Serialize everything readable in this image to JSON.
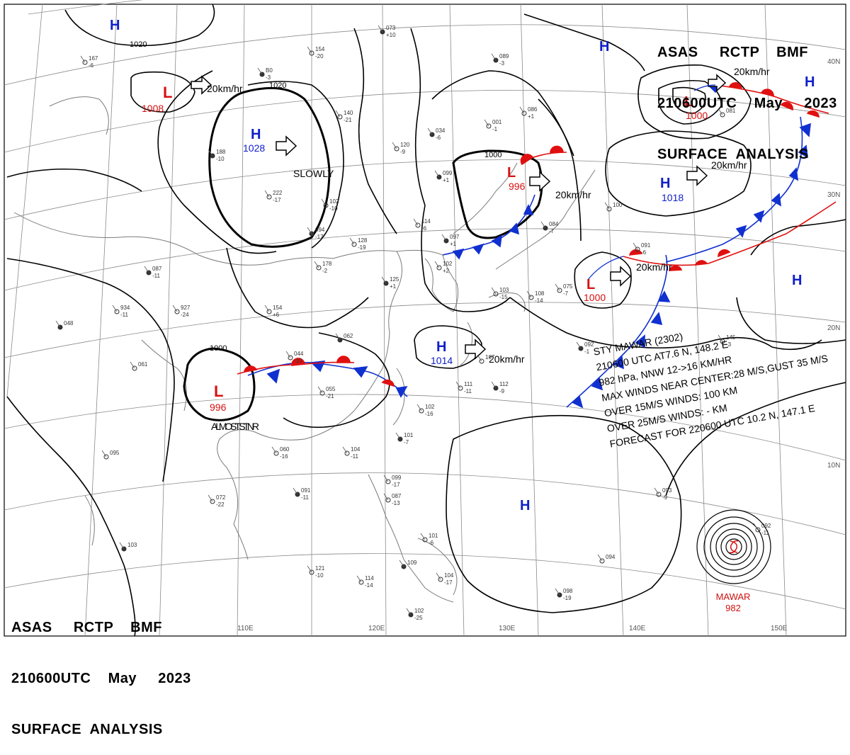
{
  "header": {
    "lines": [
      "ASAS     RCTP    BMF",
      "210600UTC    May     2023",
      "SURFACE  ANALYSIS"
    ]
  },
  "latitude_labels": [
    "40N",
    "30N",
    "20N",
    "10N"
  ],
  "longitude_labels": [
    "110E",
    "120E",
    "130E",
    "140E",
    "150E"
  ],
  "isobar_labels": [
    "1020",
    "1020",
    "1000",
    "1000",
    "1000"
  ],
  "systems": [
    {
      "type": "H",
      "pressure": "",
      "motion": ""
    },
    {
      "type": "L",
      "pressure": "1008",
      "motion": "20km/hr"
    },
    {
      "type": "H",
      "pressure": "1028",
      "motion": "SLOWLY"
    },
    {
      "type": "L",
      "pressure": "996",
      "motion": "20km/hr"
    },
    {
      "type": "H",
      "pressure": "",
      "motion": ""
    },
    {
      "type": "L",
      "pressure": "1000",
      "motion": "20km/hr"
    },
    {
      "type": "H",
      "pressure": "",
      "motion": ""
    },
    {
      "type": "H",
      "pressure": "1018",
      "motion": "20km/hr"
    },
    {
      "type": "L",
      "pressure": "1000",
      "motion": "20km/hr"
    },
    {
      "type": "H",
      "pressure": "",
      "motion": ""
    },
    {
      "type": "H",
      "pressure": "1014",
      "motion": "20km/hr"
    },
    {
      "type": "L",
      "pressure": "996",
      "motion": "ALMOST STNR"
    },
    {
      "type": "H",
      "pressure": "",
      "motion": ""
    }
  ],
  "storm": {
    "lines": [
      "STY MAWAR (2302)",
      "210600 UTC  AT7.6 N, 148.2 E",
      "982 hPa, NNW  12->16 KM/HR",
      "MAX WINDS NEAR CENTER:28 M/S,GUST 35 M/S",
      "OVER 15M/S WINDS: 100 KM",
      "OVER 25M/S WINDS: - KM",
      "FORECAST FOR 220600 UTC 10.2 N, 147.1 E"
    ],
    "name": "MAWAR",
    "pressure": "982"
  },
  "colors": {
    "high": "#1020c8",
    "low": "#d81010",
    "warm_front": "#e01010",
    "cold_front": "#1030d0",
    "isobar": "#000000",
    "grid": "#8a8a8a",
    "coast": "#777777"
  },
  "stations": [
    {
      "v": "073",
      "w": "+10"
    },
    {
      "v": "154",
      "w": "-20"
    },
    {
      "v": "167",
      "w": "-6"
    },
    {
      "v": "B0",
      "w": "-3"
    },
    {
      "v": "140",
      "w": "-21"
    },
    {
      "v": "120",
      "w": "-9"
    },
    {
      "v": "188",
      "w": "-10"
    },
    {
      "v": "222",
      "w": "-17"
    },
    {
      "v": "102",
      "w": "-10"
    },
    {
      "v": "094",
      "w": "-17"
    },
    {
      "v": "178",
      "w": "-2"
    },
    {
      "v": "154",
      "w": "+6"
    },
    {
      "v": "087",
      "w": "-11"
    },
    {
      "v": "934",
      "w": "-11"
    },
    {
      "v": "927",
      "w": "-24"
    },
    {
      "v": "048",
      "w": ""
    },
    {
      "v": "061",
      "w": ""
    },
    {
      "v": "044",
      "w": "-10"
    },
    {
      "v": "062",
      "w": ""
    },
    {
      "v": "055",
      "w": "-21"
    },
    {
      "v": "102",
      "w": "-16"
    },
    {
      "v": "101",
      "w": "-7"
    },
    {
      "v": "104",
      "w": "-11"
    },
    {
      "v": "060",
      "w": "-16"
    },
    {
      "v": "091",
      "w": "-11"
    },
    {
      "v": "072",
      "w": "-22"
    },
    {
      "v": "095",
      "w": ""
    },
    {
      "v": "103",
      "w": ""
    },
    {
      "v": "121",
      "w": "-10"
    },
    {
      "v": "114",
      "w": "-14"
    },
    {
      "v": "102",
      "w": "-25"
    },
    {
      "v": "099",
      "w": "-17"
    },
    {
      "v": "087",
      "w": "-13"
    },
    {
      "v": "109",
      "w": ""
    },
    {
      "v": "104",
      "w": "-17"
    },
    {
      "v": "101",
      "w": "-6"
    },
    {
      "v": "125",
      "w": "+1"
    },
    {
      "v": "102",
      "w": "+2"
    },
    {
      "v": "108",
      "w": "-14"
    },
    {
      "v": "112",
      "w": "-9"
    },
    {
      "v": "111",
      "w": "-11"
    },
    {
      "v": "107",
      "w": ""
    },
    {
      "v": "034",
      "w": "-6"
    },
    {
      "v": "001",
      "w": "-1"
    },
    {
      "v": "086",
      "w": "+1"
    },
    {
      "v": "089",
      "w": "-3"
    },
    {
      "v": "081",
      "w": ""
    },
    {
      "v": "145",
      "w": "-3"
    },
    {
      "v": "092",
      "w": "-1"
    },
    {
      "v": "093",
      "w": "-9"
    },
    {
      "v": "094",
      "w": ""
    },
    {
      "v": "098",
      "w": "-19"
    },
    {
      "v": "092",
      "w": "-11"
    },
    {
      "v": "100",
      "w": ""
    },
    {
      "v": "084",
      "w": "-7"
    },
    {
      "v": "075",
      "w": "-7"
    },
    {
      "v": "091",
      "w": "-6"
    },
    {
      "v": "099",
      "w": "+1"
    },
    {
      "v": "114",
      "w": "-6"
    },
    {
      "v": "128",
      "w": "-19"
    },
    {
      "v": "097",
      "w": "+1"
    },
    {
      "v": "103",
      "w": "-15"
    }
  ]
}
